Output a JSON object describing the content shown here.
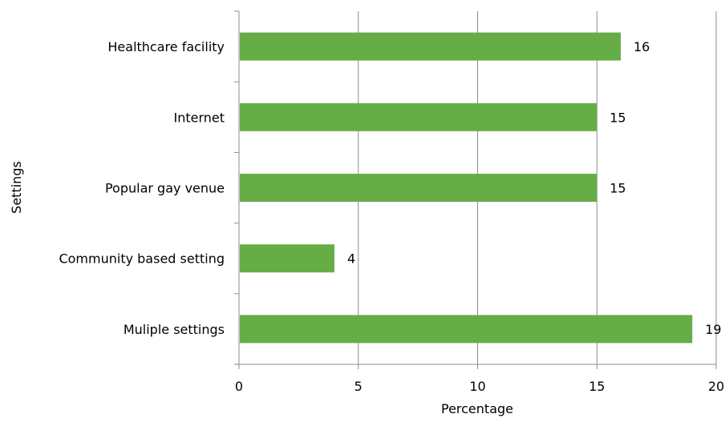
{
  "chart_data": {
    "type": "bar",
    "orientation": "horizontal",
    "categories": [
      "Healthcare facility",
      "Internet",
      "Popular gay venue",
      "Community based setting",
      "Muliple settings"
    ],
    "values": [
      16,
      15,
      15,
      4,
      19
    ],
    "data_labels": [
      "16",
      "15",
      "15",
      "4",
      "19"
    ],
    "xlabel": "Percentage",
    "ylabel": "Settings",
    "xlim": [
      0,
      20
    ],
    "xticks": [
      "0",
      "5",
      "10",
      "15",
      "20"
    ],
    "grid": "vertical",
    "legend": "none",
    "bar_color": "#66ad46"
  }
}
